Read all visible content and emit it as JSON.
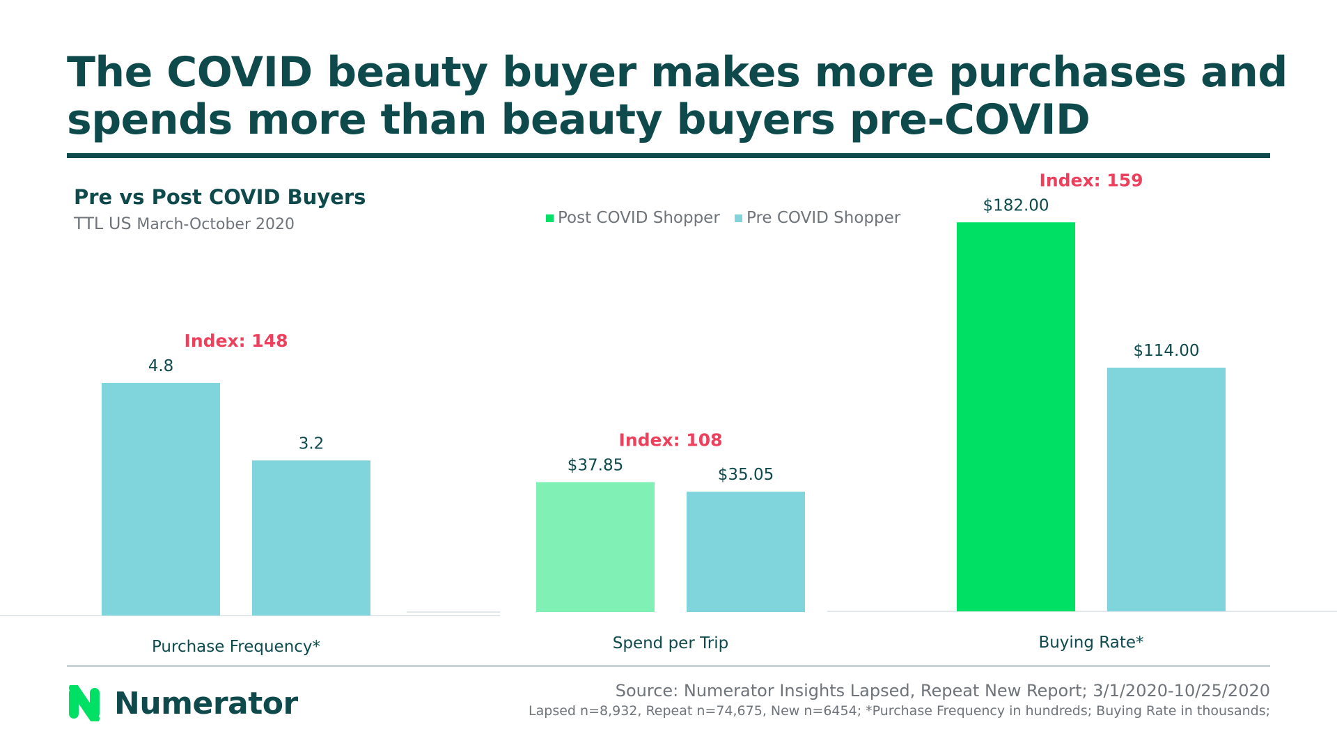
{
  "header": {
    "title_line1": "The COVID beauty buyer makes more purchases and",
    "title_line2": "spends more than beauty buyers pre-COVID"
  },
  "chart_data": {
    "type": "bar",
    "title": "Pre vs Post COVID Buyers",
    "subtitle_main": "TTL US",
    "subtitle_small": "March-October 2020",
    "legend": [
      {
        "name": "Post COVID Shopper",
        "color": "#00e064"
      },
      {
        "name": "Pre COVID Shopper",
        "color": "#80d4dc"
      }
    ],
    "groups": [
      {
        "category": "Purchase Frequency*",
        "index_label": "Index: 148",
        "bars": [
          {
            "series": "Post COVID Shopper",
            "value": 4.8,
            "label": "4.8",
            "color": "#80d4dc"
          },
          {
            "series": "Pre COVID Shopper",
            "value": 3.2,
            "label": "3.2",
            "color": "#80d4dc"
          }
        ]
      },
      {
        "category": "Spend per Trip",
        "index_label": "Index: 108",
        "bars": [
          {
            "series": "Post COVID Shopper",
            "value": 37.85,
            "label": "$37.85",
            "color": "#80f0b4"
          },
          {
            "series": "Pre COVID Shopper",
            "value": 35.05,
            "label": "$35.05",
            "color": "#80d4dc"
          }
        ]
      },
      {
        "category": "Buying Rate*",
        "index_label": "Index: 159",
        "bars": [
          {
            "series": "Post COVID Shopper",
            "value": 182.0,
            "label": "$182.00",
            "color": "#00e064"
          },
          {
            "series": "Pre COVID Shopper",
            "value": 114.0,
            "label": "$114.00",
            "color": "#80d4dc"
          }
        ]
      }
    ],
    "index_color": "#ee3f5c",
    "grid": false
  },
  "footer": {
    "brand": "Numerator",
    "source": "Source: Numerator Insights Lapsed, Repeat New Report; 3/1/2020-10/25/2020",
    "note": "Lapsed n=8,932, Repeat n=74,675, New n=6454; *Purchase Frequency in hundreds; Buying Rate in thousands;"
  }
}
